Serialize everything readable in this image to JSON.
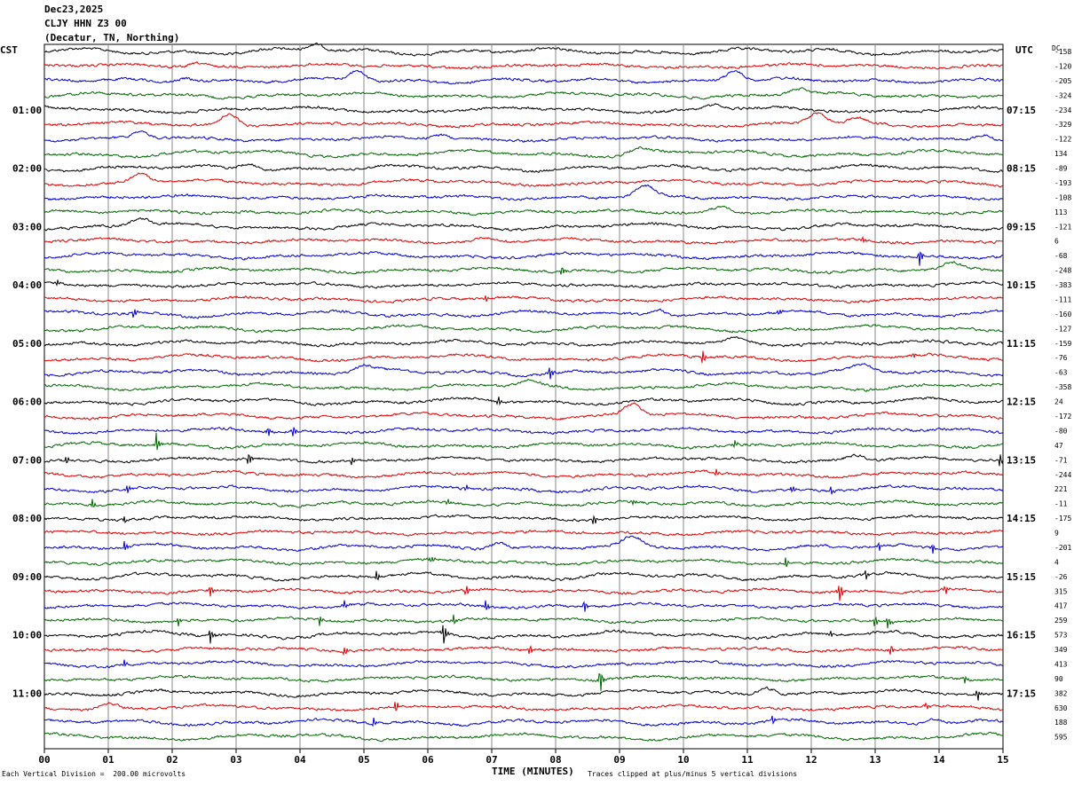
{
  "header": {
    "date": "Dec23,2025",
    "station": "CLJY HHN Z3 00",
    "location": "(Decatur, TN, Northing)"
  },
  "left_zone_label": "CST",
  "right_zone_label": "UTC",
  "dc_label": "DC",
  "footer": {
    "scale_note": "Each Vertical Division =  200.00 microvolts",
    "clip_note": "Traces clipped at plus/minus 5 vertical divisions"
  },
  "colors": {
    "trace_cycle": [
      "#000000",
      "#dd0000",
      "#0000cc",
      "#006600"
    ],
    "grid": "#888888"
  },
  "chart_data": {
    "type": "line",
    "xlabel": "TIME (MINUTES)",
    "x_ticks": [
      "00",
      "01",
      "02",
      "03",
      "04",
      "05",
      "06",
      "07",
      "08",
      "09",
      "10",
      "11",
      "12",
      "13",
      "14",
      "15"
    ],
    "xlim": [
      0,
      15
    ],
    "rows_count": 48,
    "left_hour_labels": [
      "01:00",
      "02:00",
      "03:00",
      "04:00",
      "05:00",
      "06:00",
      "07:00",
      "08:00",
      "09:00",
      "10:00",
      "11:00"
    ],
    "right_hour_labels": [
      "07:15",
      "08:15",
      "09:15",
      "10:15",
      "11:15",
      "12:15",
      "13:15",
      "14:15",
      "15:15",
      "16:15",
      "17:15"
    ],
    "hour_label_rows": [
      4,
      8,
      12,
      16,
      20,
      24,
      28,
      32,
      36,
      40,
      44
    ],
    "dc_offsets": [
      "-158",
      "-120",
      "-205",
      "-324",
      "-234",
      "-329",
      "-122",
      "134",
      "-89",
      "-193",
      "-108",
      "113",
      "-121",
      "6",
      "-68",
      "-248",
      "-383",
      "-111",
      "-160",
      "-127",
      "-159",
      "-76",
      "-63",
      "-358",
      "24",
      "-172",
      "-80",
      "47",
      "-71",
      "-244",
      "221",
      "-11",
      "-175",
      "9",
      "-201",
      "4",
      "-26",
      "315",
      "417",
      "259",
      "573",
      "349",
      "413",
      "90",
      "382",
      "630",
      "188",
      "595"
    ],
    "events": [
      {
        "row": 0,
        "x": 4.25,
        "amp": 8,
        "kind": "bump"
      },
      {
        "row": 1,
        "x": 2.4,
        "amp": 5,
        "kind": "bump"
      },
      {
        "row": 2,
        "x": 4.9,
        "amp": 12,
        "kind": "bump"
      },
      {
        "row": 2,
        "x": 10.8,
        "amp": 12,
        "kind": "bump"
      },
      {
        "row": 2,
        "x": 2.2,
        "amp": 5,
        "kind": "bump"
      },
      {
        "row": 3,
        "x": 11.8,
        "amp": 7,
        "kind": "bump"
      },
      {
        "row": 4,
        "x": 10.5,
        "amp": 5,
        "kind": "bump"
      },
      {
        "row": 5,
        "x": 2.9,
        "amp": 12,
        "kind": "bump"
      },
      {
        "row": 5,
        "x": 12.1,
        "amp": 12,
        "kind": "bump"
      },
      {
        "row": 5,
        "x": 12.7,
        "amp": 6,
        "kind": "bump"
      },
      {
        "row": 6,
        "x": 1.5,
        "amp": 7,
        "kind": "bump"
      },
      {
        "row": 6,
        "x": 6.2,
        "amp": 5,
        "kind": "bump"
      },
      {
        "row": 6,
        "x": 14.7,
        "amp": 6,
        "kind": "bump"
      },
      {
        "row": 7,
        "x": 9.3,
        "amp": 6,
        "kind": "bump"
      },
      {
        "row": 8,
        "x": 3.2,
        "amp": 7,
        "kind": "bump"
      },
      {
        "row": 9,
        "x": 1.5,
        "amp": 10,
        "kind": "bump"
      },
      {
        "row": 10,
        "x": 9.4,
        "amp": 11,
        "kind": "bump"
      },
      {
        "row": 11,
        "x": 10.6,
        "amp": 6,
        "kind": "bump"
      },
      {
        "row": 12,
        "x": 1.5,
        "amp": 9,
        "kind": "bump"
      },
      {
        "row": 13,
        "x": 6.9,
        "amp": 4,
        "kind": "bump"
      },
      {
        "row": 13,
        "x": 12.8,
        "amp": 4,
        "kind": "burst"
      },
      {
        "row": 14,
        "x": 13.7,
        "amp": 12,
        "kind": "burst"
      },
      {
        "row": 15,
        "x": 8.1,
        "amp": 7,
        "kind": "burst"
      },
      {
        "row": 15,
        "x": 14.2,
        "amp": 6,
        "kind": "bump"
      },
      {
        "row": 16,
        "x": 0.2,
        "amp": 5,
        "kind": "burst"
      },
      {
        "row": 17,
        "x": 6.9,
        "amp": 5,
        "kind": "burst"
      },
      {
        "row": 18,
        "x": 1.4,
        "amp": 8,
        "kind": "burst"
      },
      {
        "row": 18,
        "x": 9.6,
        "amp": 8,
        "kind": "bump"
      },
      {
        "row": 18,
        "x": 11.5,
        "amp": 5,
        "kind": "burst"
      },
      {
        "row": 20,
        "x": 10.8,
        "amp": 5,
        "kind": "bump"
      },
      {
        "row": 21,
        "x": 10.3,
        "amp": 10,
        "kind": "burst"
      },
      {
        "row": 21,
        "x": 13.6,
        "amp": 5,
        "kind": "burst"
      },
      {
        "row": 22,
        "x": 5.0,
        "amp": 7,
        "kind": "bump"
      },
      {
        "row": 22,
        "x": 7.9,
        "amp": 12,
        "kind": "burst"
      },
      {
        "row": 22,
        "x": 12.8,
        "amp": 6,
        "kind": "bump"
      },
      {
        "row": 23,
        "x": 7.6,
        "amp": 6,
        "kind": "bump"
      },
      {
        "row": 24,
        "x": 7.1,
        "amp": 7,
        "kind": "burst"
      },
      {
        "row": 25,
        "x": 9.2,
        "amp": 13,
        "kind": "bump"
      },
      {
        "row": 26,
        "x": 3.5,
        "amp": 8,
        "kind": "burst"
      },
      {
        "row": 26,
        "x": 3.9,
        "amp": 7,
        "kind": "burst"
      },
      {
        "row": 27,
        "x": 1.75,
        "amp": 14,
        "kind": "burst"
      },
      {
        "row": 27,
        "x": 10.8,
        "amp": 5,
        "kind": "burst"
      },
      {
        "row": 28,
        "x": 3.2,
        "amp": 10,
        "kind": "burst"
      },
      {
        "row": 28,
        "x": 4.8,
        "amp": 7,
        "kind": "burst"
      },
      {
        "row": 28,
        "x": 0.35,
        "amp": 6,
        "kind": "burst"
      },
      {
        "row": 28,
        "x": 12.7,
        "amp": 6,
        "kind": "bump"
      },
      {
        "row": 28,
        "x": 14.95,
        "amp": 9,
        "kind": "burst"
      },
      {
        "row": 29,
        "x": 10.5,
        "amp": 5,
        "kind": "burst"
      },
      {
        "row": 30,
        "x": 1.3,
        "amp": 6,
        "kind": "burst"
      },
      {
        "row": 30,
        "x": 6.6,
        "amp": 5,
        "kind": "burst"
      },
      {
        "row": 30,
        "x": 11.7,
        "amp": 5,
        "kind": "burst"
      },
      {
        "row": 30,
        "x": 12.3,
        "amp": 7,
        "kind": "burst"
      },
      {
        "row": 31,
        "x": 0.75,
        "amp": 7,
        "kind": "burst"
      },
      {
        "row": 31,
        "x": 6.3,
        "amp": 6,
        "kind": "burst"
      },
      {
        "row": 31,
        "x": 9.2,
        "amp": 5,
        "kind": "burst"
      },
      {
        "row": 32,
        "x": 8.6,
        "amp": 9,
        "kind": "burst"
      },
      {
        "row": 32,
        "x": 1.25,
        "amp": 5,
        "kind": "burst"
      },
      {
        "row": 34,
        "x": 1.25,
        "amp": 8,
        "kind": "burst"
      },
      {
        "row": 34,
        "x": 7.1,
        "amp": 7,
        "kind": "bump"
      },
      {
        "row": 34,
        "x": 9.2,
        "amp": 10,
        "kind": "bump"
      },
      {
        "row": 34,
        "x": 13.05,
        "amp": 8,
        "kind": "burst"
      },
      {
        "row": 34,
        "x": 13.9,
        "amp": 8,
        "kind": "burst"
      },
      {
        "row": 35,
        "x": 6.05,
        "amp": 6,
        "kind": "burst"
      },
      {
        "row": 35,
        "x": 11.6,
        "amp": 7,
        "kind": "burst"
      },
      {
        "row": 36,
        "x": 5.2,
        "amp": 7,
        "kind": "burst"
      },
      {
        "row": 36,
        "x": 12.85,
        "amp": 7,
        "kind": "burst"
      },
      {
        "row": 37,
        "x": 2.6,
        "amp": 8,
        "kind": "burst"
      },
      {
        "row": 37,
        "x": 6.6,
        "amp": 8,
        "kind": "burst"
      },
      {
        "row": 37,
        "x": 12.45,
        "amp": 14,
        "kind": "burst"
      },
      {
        "row": 37,
        "x": 14.1,
        "amp": 6,
        "kind": "burst"
      },
      {
        "row": 38,
        "x": 4.7,
        "amp": 6,
        "kind": "burst"
      },
      {
        "row": 38,
        "x": 6.9,
        "amp": 8,
        "kind": "burst"
      },
      {
        "row": 38,
        "x": 8.45,
        "amp": 8,
        "kind": "burst"
      },
      {
        "row": 39,
        "x": 2.1,
        "amp": 6,
        "kind": "burst"
      },
      {
        "row": 39,
        "x": 4.3,
        "amp": 9,
        "kind": "burst"
      },
      {
        "row": 39,
        "x": 6.4,
        "amp": 7,
        "kind": "burst"
      },
      {
        "row": 39,
        "x": 13.0,
        "amp": 9,
        "kind": "burst"
      },
      {
        "row": 39,
        "x": 13.2,
        "amp": 8,
        "kind": "burst"
      },
      {
        "row": 40,
        "x": 2.6,
        "amp": 10,
        "kind": "burst"
      },
      {
        "row": 40,
        "x": 6.25,
        "amp": 16,
        "kind": "burst"
      },
      {
        "row": 40,
        "x": 12.3,
        "amp": 6,
        "kind": "burst"
      },
      {
        "row": 41,
        "x": 4.7,
        "amp": 7,
        "kind": "burst"
      },
      {
        "row": 41,
        "x": 7.6,
        "amp": 8,
        "kind": "burst"
      },
      {
        "row": 41,
        "x": 13.25,
        "amp": 8,
        "kind": "burst"
      },
      {
        "row": 42,
        "x": 1.25,
        "amp": 5,
        "kind": "burst"
      },
      {
        "row": 43,
        "x": 8.7,
        "amp": 18,
        "kind": "burst"
      },
      {
        "row": 43,
        "x": 14.4,
        "amp": 6,
        "kind": "burst"
      },
      {
        "row": 44,
        "x": 11.3,
        "amp": 9,
        "kind": "bump"
      },
      {
        "row": 44,
        "x": 14.6,
        "amp": 10,
        "kind": "burst"
      },
      {
        "row": 45,
        "x": 1.0,
        "amp": 6,
        "kind": "bump"
      },
      {
        "row": 45,
        "x": 5.5,
        "amp": 9,
        "kind": "burst"
      },
      {
        "row": 45,
        "x": 13.8,
        "amp": 6,
        "kind": "burst"
      },
      {
        "row": 46,
        "x": 5.15,
        "amp": 6,
        "kind": "burst"
      },
      {
        "row": 46,
        "x": 11.4,
        "amp": 6,
        "kind": "burst"
      },
      {
        "row": 46,
        "x": 13.9,
        "amp": 7,
        "kind": "bump"
      }
    ]
  }
}
